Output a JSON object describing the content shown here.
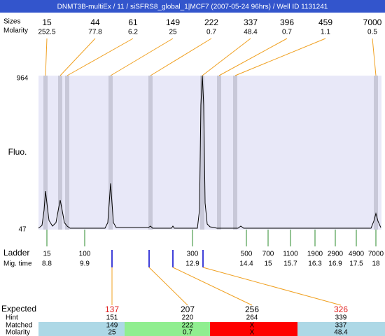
{
  "title": "DNMT3B-multiEx / 11 / siSFRS8_global_1|MCF7 (2007-05-24 96hrs) / Well ID 1131241",
  "top": {
    "labels": [
      "Sizes",
      "Molarity"
    ],
    "sizes": [
      15,
      44,
      61,
      149,
      222,
      337,
      396,
      459,
      7000
    ],
    "molarity": [
      252.5,
      77.8,
      6.2,
      25,
      0.7,
      48.4,
      0.7,
      1.1,
      0.5
    ]
  },
  "y_axis": {
    "max": "964",
    "min": "47",
    "label": "Fluo."
  },
  "ladder": {
    "labels": [
      "Ladder",
      "Mig. time"
    ],
    "sizes": [
      15,
      100,
      300,
      500,
      700,
      1100,
      1900,
      2900,
      4900,
      7000
    ],
    "mig_times": [
      8.8,
      9.9,
      12.9,
      14.4,
      15,
      15.7,
      16.3,
      16.9,
      17.5,
      18
    ]
  },
  "results": {
    "labels": [
      "Expected",
      "Hint",
      "Matched",
      "Molarity"
    ],
    "expected": [
      137,
      207,
      256,
      326
    ],
    "hint": [
      151,
      220,
      264,
      339
    ],
    "matched": [
      149,
      222,
      "X",
      337
    ],
    "molarity": [
      25,
      0.7,
      "X",
      48.4
    ]
  }
}
